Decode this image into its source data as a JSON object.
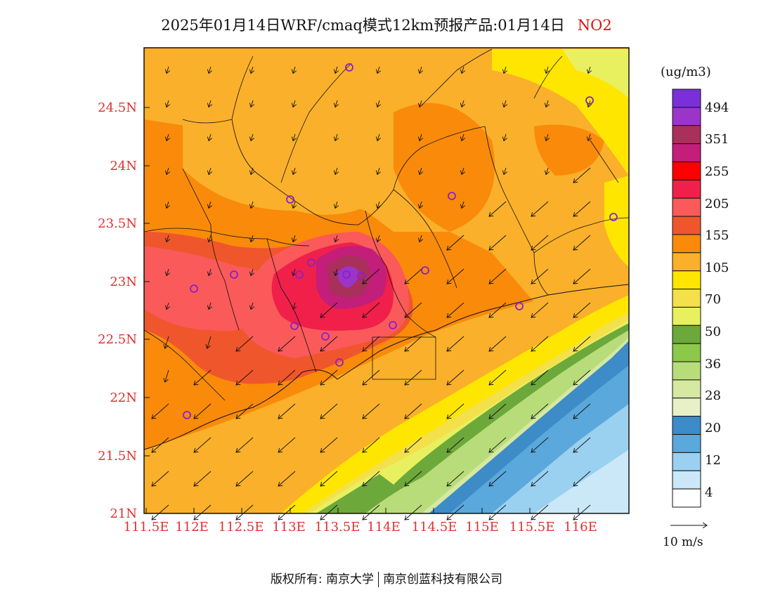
{
  "title": {
    "text": "2025年01月14日WRF/cmaq模式12km预报产品:01月14日",
    "species": "NO2"
  },
  "axes": {
    "lat_ticks": [
      "24.5N",
      "24N",
      "23.5N",
      "23N",
      "22.5N",
      "22N",
      "21.5N",
      "21N"
    ],
    "lon_ticks": [
      "111.5E",
      "112E",
      "112.5E",
      "113E",
      "113.5E",
      "114E",
      "114.5E",
      "115E",
      "115.5E",
      "116E"
    ]
  },
  "colorbar": {
    "units": "(ug/m3)",
    "labels": [
      "494",
      "351",
      "255",
      "205",
      "155",
      "105",
      "70",
      "50",
      "36",
      "28",
      "20",
      "12",
      "4"
    ],
    "colors": [
      "#7b2fd8",
      "#9b35c8",
      "#a8305a",
      "#c21e7a",
      "#ff0000",
      "#f0204a",
      "#fa5a5a",
      "#f0562c",
      "#f98a0a",
      "#fab02a",
      "#ffe600",
      "#f3e04b",
      "#e8f060",
      "#6da83a",
      "#8cc84a",
      "#b8dc7a",
      "#d6e8a2",
      "#e8f0c8",
      "#3d8cc8",
      "#5aa8dc",
      "#9ad0f0",
      "#cae8f8",
      "#ffffff"
    ]
  },
  "wind_reference": "10 m/s",
  "footer": {
    "left": "版权所有: 南京大学",
    "right": "南京创蓝科技有限公司"
  }
}
